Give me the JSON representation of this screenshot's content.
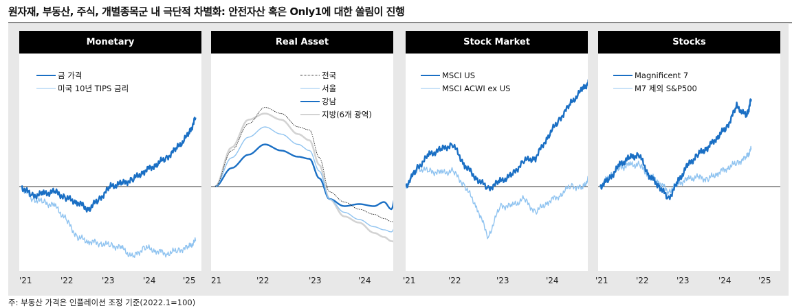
{
  "title": "원자재, 부동산, 주식, 개별종목군 내 극단적 차별화: 안전자산 혹은 Only1에 대한 쏠림이 진행",
  "footnote": "주: 부동산 가격은 인플레이션 조정 기준(2022.1=100)",
  "colors": {
    "dark": "#1a6fc4",
    "light": "#8fc3f0",
    "grey": "#d3d3d3",
    "dotted": "#222222"
  },
  "chart_data": [
    {
      "type": "line",
      "title": "Monetary",
      "x_ticks": [
        "'21",
        "'22",
        "'23",
        "'24",
        "'25"
      ],
      "xlim": [
        2021,
        2025
      ],
      "ylim": [
        -82,
        118
      ],
      "grid": false,
      "legend": "top-left",
      "series": [
        {
          "name": "금 가격",
          "style": "dark",
          "x": [
            2021,
            2021.25,
            2021.5,
            2021.75,
            2022,
            2022.25,
            2022.5,
            2022.75,
            2023,
            2023.25,
            2023.5,
            2023.75,
            2024,
            2024.25,
            2024.5,
            2024.75,
            2024.9
          ],
          "values": [
            0,
            -9,
            -7,
            -5,
            -11,
            -15,
            -22,
            -12,
            0,
            3,
            7,
            15,
            21,
            28,
            38,
            51,
            67
          ]
        },
        {
          "name": "미국 10년 TIPS 금리",
          "style": "light",
          "x": [
            2021,
            2021.25,
            2021.5,
            2021.75,
            2022,
            2022.25,
            2022.5,
            2022.75,
            2023,
            2023.25,
            2023.5,
            2023.75,
            2024,
            2024.25,
            2024.5,
            2024.75,
            2024.9
          ],
          "values": [
            0,
            -12,
            -15,
            -19,
            -32,
            -49,
            -53,
            -55,
            -57,
            -60,
            -69,
            -59,
            -62,
            -65,
            -62,
            -59,
            -53
          ]
        }
      ]
    },
    {
      "type": "line",
      "title": "Real Asset",
      "x_ticks": [
        "21",
        "'22",
        "'23",
        "'24"
      ],
      "xlim": [
        2021,
        2024.67
      ],
      "ylim": [
        -82,
        118
      ],
      "grid": false,
      "legend": "top-right",
      "series": [
        {
          "name": "전국",
          "style": "dotted",
          "x": [
            2021,
            2021.33,
            2021.67,
            2022,
            2022.33,
            2022.67,
            2022.9,
            2023.1,
            2023.3,
            2023.6,
            2023.9,
            2024.2,
            2024.4,
            2024.55,
            2024.67
          ],
          "values": [
            0,
            35,
            61,
            77,
            71,
            58,
            55,
            28,
            -5,
            -15,
            -22,
            -27,
            -31,
            -34,
            -35
          ]
        },
        {
          "name": "서울",
          "style": "light",
          "x": [
            2021,
            2021.33,
            2021.67,
            2022,
            2022.33,
            2022.67,
            2022.9,
            2023.1,
            2023.3,
            2023.6,
            2023.9,
            2024.2,
            2024.4,
            2024.55,
            2024.67
          ],
          "values": [
            0,
            28,
            48,
            58,
            51,
            41,
            35,
            15,
            -12,
            -25,
            -32,
            -39,
            -42,
            -44,
            -35
          ]
        },
        {
          "name": "강남",
          "style": "dark",
          "x": [
            2021,
            2021.33,
            2021.67,
            2022,
            2022.33,
            2022.67,
            2022.9,
            2023.1,
            2023.3,
            2023.6,
            2023.9,
            2024.2,
            2024.4,
            2024.55,
            2024.67
          ],
          "values": [
            0,
            18,
            31,
            41,
            35,
            29,
            27,
            8,
            -12,
            -19,
            -17,
            -19,
            -15,
            -22,
            0
          ]
        },
        {
          "name": "지방(6개 광역)",
          "style": "grey",
          "x": [
            2021,
            2021.33,
            2021.67,
            2022,
            2022.33,
            2022.67,
            2022.9,
            2023.1,
            2023.3,
            2023.6,
            2023.9,
            2024.2,
            2024.4,
            2024.55,
            2024.67
          ],
          "values": [
            0,
            38,
            65,
            71,
            65,
            51,
            45,
            21,
            -12,
            -29,
            -35,
            -45,
            -49,
            -53,
            -55
          ]
        }
      ]
    },
    {
      "type": "line",
      "title": "Stock Market",
      "x_ticks": [
        "'21",
        "'22",
        "'23",
        "'24"
      ],
      "xlim": [
        2021,
        2024.9
      ],
      "ylim": [
        -82,
        118
      ],
      "grid": false,
      "legend": "top-left",
      "series": [
        {
          "name": "MSCI US",
          "style": "dark",
          "x": [
            2021,
            2021.25,
            2021.5,
            2021.75,
            2022,
            2022.25,
            2022.5,
            2022.75,
            2023,
            2023.25,
            2023.5,
            2023.75,
            2024,
            2024.25,
            2024.5,
            2024.75,
            2024.9
          ],
          "values": [
            0,
            18,
            31,
            36,
            41,
            21,
            8,
            -2,
            5,
            11,
            25,
            28,
            48,
            65,
            81,
            95,
            103
          ]
        },
        {
          "name": "MSCI ACWI ex US",
          "style": "light",
          "x": [
            2021,
            2021.25,
            2021.5,
            2021.75,
            2022,
            2022.25,
            2022.5,
            2022.75,
            2023,
            2023.25,
            2023.5,
            2023.75,
            2024,
            2024.25,
            2024.5,
            2024.75,
            2024.9
          ],
          "values": [
            0,
            18,
            15,
            13,
            15,
            1,
            -19,
            -49,
            -19,
            -19,
            -12,
            -25,
            -15,
            -9,
            1,
            -2,
            11
          ]
        }
      ]
    },
    {
      "type": "line",
      "title": "Stocks",
      "x_ticks": [
        "'21",
        "'22",
        "'23",
        "'24",
        "'25"
      ],
      "xlim": [
        2021,
        2025
      ],
      "ylim": [
        -82,
        118
      ],
      "grid": false,
      "legend": "top-left",
      "series": [
        {
          "name": "Magnificent 7",
          "style": "dark",
          "x": [
            2021,
            2021.25,
            2021.5,
            2021.75,
            2022,
            2022.25,
            2022.5,
            2022.75,
            2023,
            2023.25,
            2023.5,
            2023.75,
            2024,
            2024.25,
            2024.5,
            2024.75,
            2024.87
          ],
          "values": [
            0,
            8,
            21,
            28,
            31,
            11,
            1,
            -12,
            5,
            21,
            31,
            38,
            48,
            58,
            78,
            68,
            85
          ]
        },
        {
          "name": "M7 제외 S&P500",
          "style": "light",
          "x": [
            2021,
            2021.25,
            2021.5,
            2021.75,
            2022,
            2022.25,
            2022.5,
            2022.75,
            2023,
            2023.25,
            2023.5,
            2023.75,
            2024,
            2024.25,
            2024.5,
            2024.75,
            2024.87
          ],
          "values": [
            0,
            11,
            18,
            21,
            21,
            11,
            5,
            -5,
            3,
            7,
            9,
            7,
            13,
            18,
            23,
            28,
            36
          ]
        }
      ]
    }
  ]
}
